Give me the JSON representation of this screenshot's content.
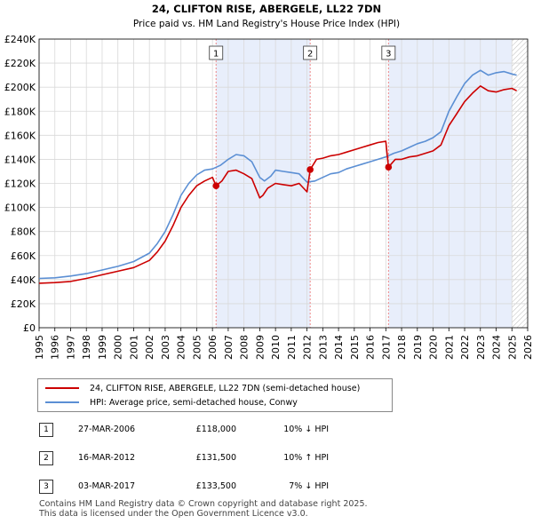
{
  "chart_data": {
    "type": "line",
    "title": "24, CLIFTON RISE, ABERGELE, LL22 7DN",
    "subtitle": "Price paid vs. HM Land Registry's House Price Index (HPI)",
    "xlim": [
      1995,
      2026
    ],
    "ylim": [
      0,
      240000
    ],
    "x_ticks": [
      "1995",
      "1996",
      "1997",
      "1998",
      "1999",
      "2000",
      "2001",
      "2002",
      "2003",
      "2004",
      "2005",
      "2006",
      "2007",
      "2008",
      "2009",
      "2010",
      "2011",
      "2012",
      "2013",
      "2014",
      "2015",
      "2016",
      "2017",
      "2018",
      "2019",
      "2020",
      "2021",
      "2022",
      "2023",
      "2024",
      "2025",
      "2026"
    ],
    "y_ticks": [
      "£0",
      "£20K",
      "£40K",
      "£60K",
      "£80K",
      "£100K",
      "£120K",
      "£140K",
      "£160K",
      "£180K",
      "£200K",
      "£220K",
      "£240K"
    ],
    "series": [
      {
        "name": "24, CLIFTON RISE, ABERGELE, LL22 7DN (semi-detached house)",
        "color": "#cc0000",
        "x": [
          1995.0,
          1996.0,
          1997.0,
          1998.0,
          1999.0,
          2000.0,
          2001.0,
          2002.0,
          2002.5,
          2003.0,
          2003.5,
          2004.0,
          2004.5,
          2005.0,
          2005.5,
          2006.0,
          2006.23,
          2006.6,
          2007.0,
          2007.5,
          2008.0,
          2008.5,
          2009.0,
          2009.2,
          2009.5,
          2010.0,
          2010.5,
          2011.0,
          2011.5,
          2012.0,
          2012.2,
          2012.6,
          2013.0,
          2013.5,
          2014.0,
          2014.5,
          2015.0,
          2015.5,
          2016.0,
          2016.5,
          2017.0,
          2017.17,
          2017.6,
          2018.0,
          2018.5,
          2019.0,
          2019.5,
          2020.0,
          2020.5,
          2021.0,
          2021.5,
          2022.0,
          2022.5,
          2023.0,
          2023.5,
          2024.0,
          2024.5,
          2025.0,
          2025.3
        ],
        "y": [
          37000,
          37500,
          38500,
          41000,
          44000,
          47000,
          50000,
          56000,
          63000,
          72000,
          85000,
          100000,
          110000,
          118000,
          122000,
          125000,
          118000,
          122000,
          130000,
          131000,
          128000,
          124000,
          108000,
          110000,
          116000,
          120000,
          119000,
          118000,
          120000,
          113000,
          131500,
          140000,
          141000,
          143000,
          144000,
          146000,
          148000,
          150000,
          152000,
          154000,
          155000,
          133500,
          140000,
          140000,
          142000,
          143000,
          145000,
          147000,
          152000,
          168000,
          178000,
          188000,
          195000,
          201000,
          197000,
          196000,
          198000,
          199000,
          197000
        ]
      },
      {
        "name": "HPI: Average price, semi-detached house, Conwy",
        "color": "#5b8fd4",
        "x": [
          1995.0,
          1996.0,
          1997.0,
          1998.0,
          1999.0,
          2000.0,
          2001.0,
          2002.0,
          2002.5,
          2003.0,
          2003.5,
          2004.0,
          2004.5,
          2005.0,
          2005.5,
          2006.0,
          2006.5,
          2007.0,
          2007.5,
          2008.0,
          2008.5,
          2009.0,
          2009.3,
          2009.7,
          2010.0,
          2010.5,
          2011.0,
          2011.5,
          2012.0,
          2012.5,
          2013.0,
          2013.5,
          2014.0,
          2014.5,
          2015.0,
          2015.5,
          2016.0,
          2016.5,
          2017.0,
          2017.5,
          2018.0,
          2018.5,
          2019.0,
          2019.5,
          2020.0,
          2020.5,
          2021.0,
          2021.5,
          2022.0,
          2022.5,
          2023.0,
          2023.5,
          2024.0,
          2024.5,
          2025.0,
          2025.3
        ],
        "y": [
          41000,
          41500,
          43000,
          45000,
          48000,
          51000,
          55000,
          62000,
          70000,
          80000,
          94000,
          110000,
          120000,
          127000,
          131000,
          132000,
          135000,
          140000,
          144000,
          143000,
          138000,
          125000,
          122000,
          126000,
          131000,
          130000,
          129000,
          128000,
          121000,
          122000,
          125000,
          128000,
          129000,
          132000,
          134000,
          136000,
          138000,
          140000,
          142000,
          145000,
          147000,
          150000,
          153000,
          155000,
          158000,
          163000,
          180000,
          192000,
          203000,
          210000,
          214000,
          210000,
          212000,
          213000,
          211000,
          210000
        ]
      }
    ],
    "sale_markers": [
      {
        "label": "1",
        "x": 2006.23,
        "y": 118000
      },
      {
        "label": "2",
        "x": 2012.2,
        "y": 131500
      },
      {
        "label": "3",
        "x": 2017.17,
        "y": 133500
      }
    ],
    "shaded_ranges": [
      [
        2006.23,
        2012.2
      ],
      [
        2017.17,
        2025.0
      ]
    ],
    "hatched_from": 2025.0,
    "grid": true
  },
  "legend": {
    "property_label": "24, CLIFTON RISE, ABERGELE, LL22 7DN (semi-detached house)",
    "hpi_label": "HPI: Average price, semi-detached house, Conwy",
    "property_color": "#cc0000",
    "hpi_color": "#5b8fd4"
  },
  "sales": [
    {
      "num": "1",
      "date": "27-MAR-2006",
      "price": "£118,000",
      "hpi": "10% ↓ HPI"
    },
    {
      "num": "2",
      "date": "16-MAR-2012",
      "price": "£131,500",
      "hpi": "10% ↑ HPI"
    },
    {
      "num": "3",
      "date": "03-MAR-2017",
      "price": "£133,500",
      "hpi": "7% ↓ HPI"
    }
  ],
  "footer": {
    "line1": "Contains HM Land Registry data © Crown copyright and database right 2025.",
    "line2": "This data is licensed under the Open Government Licence v3.0."
  }
}
